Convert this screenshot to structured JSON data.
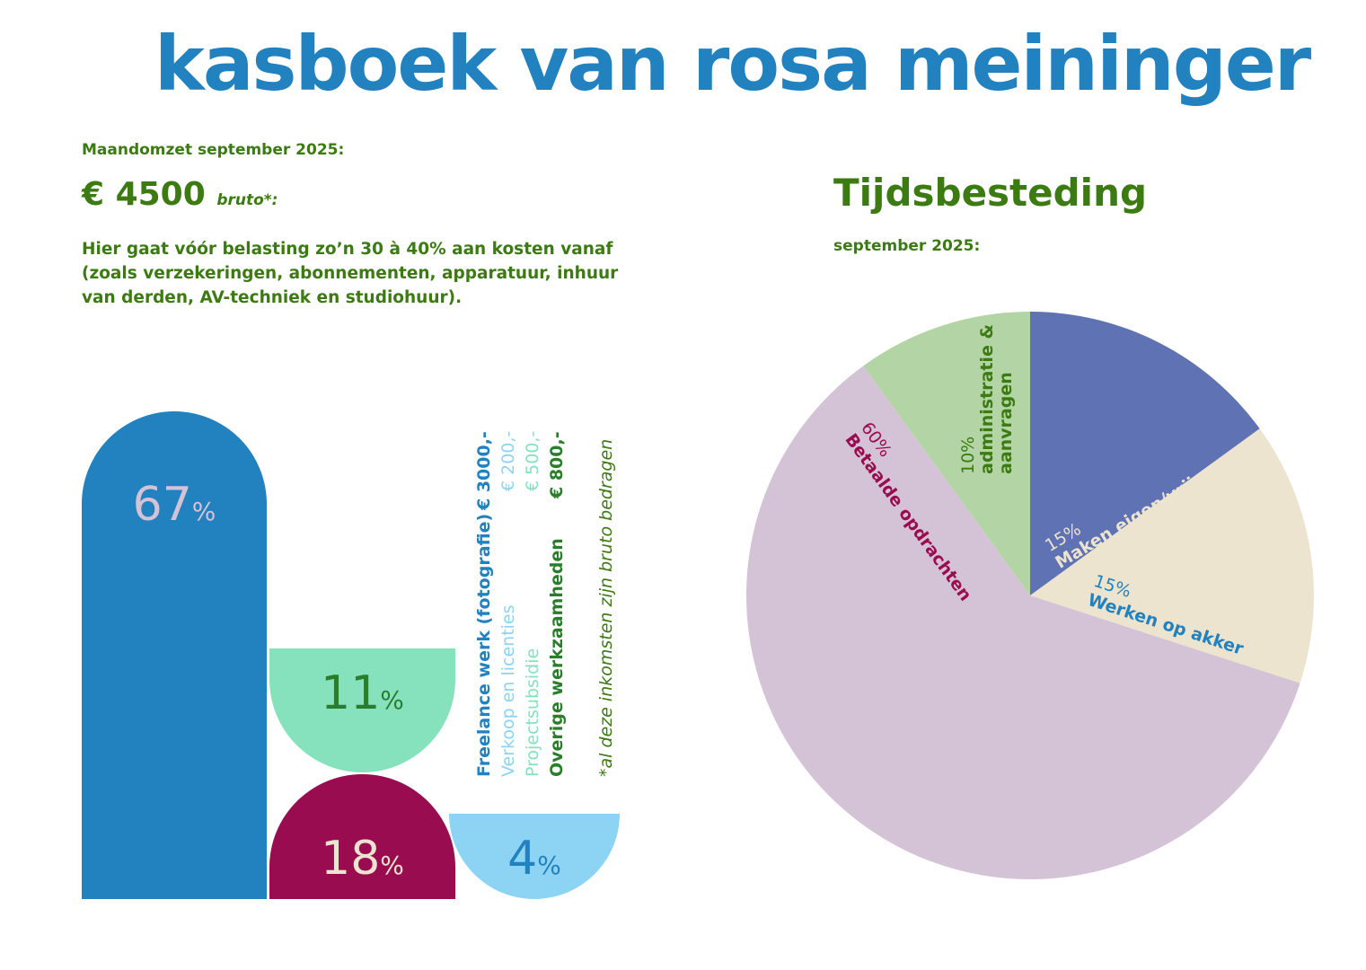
{
  "header": {
    "title": "kasboek van rosa meininger"
  },
  "revenue": {
    "subtitle": "Maandomzet september 2025:",
    "amount": "€ 4500",
    "amount_note": "bruto*:",
    "note": "Hier gaat vóór belasting zo’n 30 à 40% aan kosten vanaf (zoals verzekeringen, abonnementen, apparatuur, inhuur van derden, AV-techniek en studiohuur)."
  },
  "time": {
    "title": "Tijdsbesteding",
    "subtitle": "september 2025:"
  },
  "legend": {
    "footnote": "*al deze inkomsten zijn bruto bedragen"
  },
  "chart_data": [
    {
      "type": "bar",
      "title": "Maandomzet september 2025",
      "categories": [
        "Freelance werk (fotografie)",
        "Verkoop en licenties",
        "Projectsubsidie",
        "Overige werkzaamheden"
      ],
      "amounts": [
        "€ 3000,-",
        "€ 200,-",
        "€ 500,-",
        "€ 800,-"
      ],
      "values": [
        67,
        4,
        11,
        18
      ],
      "labels": [
        "67",
        "4",
        "11",
        "18"
      ],
      "unit": "%",
      "colors": [
        "#2281bf",
        "#8dd3f3",
        "#86e2bd",
        "#9a0c50"
      ],
      "text_colors": [
        "#2281bf",
        "#8dd3f3",
        "#86e2bd",
        "#2a7d2a"
      ]
    },
    {
      "type": "pie",
      "title": "Tijdsbesteding",
      "categories": [
        "Maken eigen/vrij werk",
        "Werken op akker",
        "Betaalde opdrachten",
        "administratie & aanvragen"
      ],
      "values": [
        15,
        15,
        60,
        10
      ],
      "labels": [
        "15%",
        "15%",
        "60%",
        "10%"
      ],
      "colors": [
        "#5f72b3",
        "#ede4cf",
        "#d4c3d6",
        "#b3d4a4"
      ]
    }
  ]
}
